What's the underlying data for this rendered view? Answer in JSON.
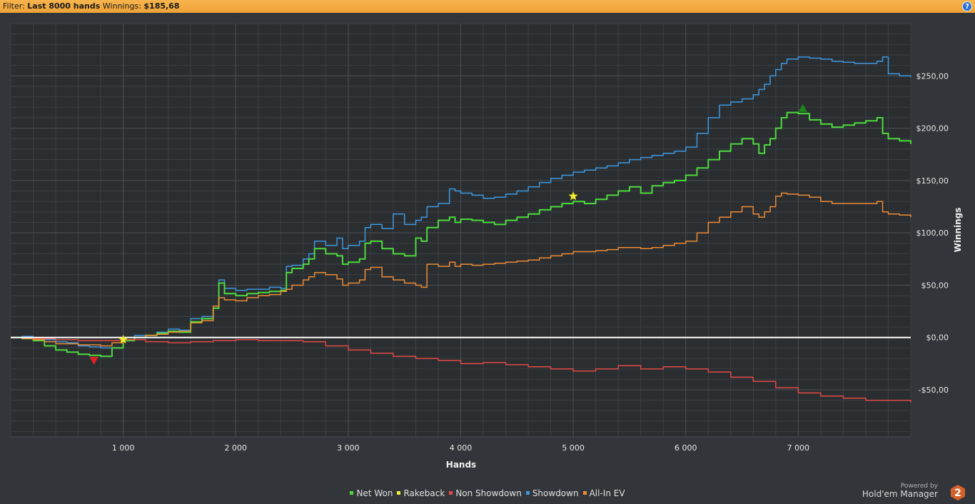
{
  "filter": {
    "prefix": "Filter:",
    "value": "Last 8000 hands",
    "winnings_label": "Winnings:",
    "winnings_value": "$185,68"
  },
  "help_icon": "question-icon",
  "colors": {
    "background": "#32363a",
    "plot_background": "#2b2e31",
    "grid": "#4a4e52",
    "zero_line": "#ffffff",
    "net_won": "#4ddb3c",
    "rakeback": "#f2ee3a",
    "non_showdown": "#e24a45",
    "showdown": "#3d98e0",
    "all_in_ev": "#ec8b35"
  },
  "chart_data": {
    "type": "line",
    "xlabel": "Hands",
    "ylabel": "Winnings",
    "xlim": [
      0,
      8000
    ],
    "ylim": [
      -95,
      300
    ],
    "xticks": [
      {
        "value": 1000,
        "label": "1 000"
      },
      {
        "value": 2000,
        "label": "2 000"
      },
      {
        "value": 3000,
        "label": "3 000"
      },
      {
        "value": 4000,
        "label": "4 000"
      },
      {
        "value": 5000,
        "label": "5 000"
      },
      {
        "value": 6000,
        "label": "6 000"
      },
      {
        "value": 7000,
        "label": "7 000"
      }
    ],
    "yticks": [
      {
        "value": -50,
        "label": "-$50,00"
      },
      {
        "value": 0,
        "label": "$0,00"
      },
      {
        "value": 50,
        "label": "$50,00"
      },
      {
        "value": 100,
        "label": "$100,00"
      },
      {
        "value": 150,
        "label": "$150,00"
      },
      {
        "value": 200,
        "label": "$200,00"
      },
      {
        "value": 250,
        "label": "$250,00"
      }
    ],
    "series": [
      {
        "name": "Showdown",
        "color": "#3d98e0",
        "x": [
          0,
          100,
          200,
          300,
          400,
          500,
          600,
          700,
          800,
          1000,
          1100,
          1300,
          1400,
          1500,
          1600,
          1700,
          1800,
          1850,
          1900,
          2000,
          2100,
          2200,
          2300,
          2400,
          2450,
          2500,
          2600,
          2650,
          2700,
          2800,
          2900,
          2950,
          3000,
          3100,
          3150,
          3200,
          3300,
          3400,
          3500,
          3600,
          3650,
          3700,
          3800,
          3900,
          3950,
          4000,
          4100,
          4200,
          4300,
          4400,
          4500,
          4600,
          4700,
          4800,
          4900,
          5000,
          5100,
          5200,
          5300,
          5400,
          5500,
          5600,
          5700,
          5800,
          5900,
          6000,
          6100,
          6200,
          6300,
          6400,
          6500,
          6600,
          6650,
          6700,
          6750,
          6800,
          6850,
          6900,
          7000,
          7100,
          7200,
          7300,
          7400,
          7500,
          7600,
          7700,
          7750,
          7800,
          7900,
          8000
        ],
        "y": [
          0,
          1,
          0,
          -2,
          -4,
          -5,
          -8,
          -9,
          -10,
          -3,
          2,
          5,
          8,
          7,
          18,
          20,
          30,
          55,
          47,
          45,
          46,
          46,
          48,
          47,
          68,
          69,
          75,
          80,
          92,
          88,
          95,
          85,
          88,
          92,
          105,
          108,
          104,
          118,
          108,
          112,
          115,
          125,
          128,
          142,
          140,
          138,
          136,
          133,
          134,
          137,
          140,
          144,
          148,
          152,
          155,
          158,
          160,
          162,
          164,
          167,
          170,
          172,
          174,
          176,
          178,
          182,
          195,
          210,
          222,
          225,
          228,
          232,
          237,
          242,
          250,
          256,
          262,
          266,
          268,
          267,
          266,
          264,
          263,
          262,
          262,
          264,
          268,
          252,
          250,
          249
        ]
      },
      {
        "name": "Net Won",
        "color": "#4ddb3c",
        "x": [
          0,
          100,
          200,
          300,
          400,
          500,
          600,
          700,
          800,
          900,
          1000,
          1100,
          1200,
          1300,
          1400,
          1500,
          1600,
          1700,
          1800,
          1850,
          1900,
          2000,
          2100,
          2200,
          2300,
          2400,
          2450,
          2500,
          2600,
          2650,
          2700,
          2800,
          2900,
          2950,
          3000,
          3100,
          3150,
          3200,
          3300,
          3400,
          3500,
          3600,
          3650,
          3700,
          3800,
          3900,
          3950,
          4000,
          4100,
          4200,
          4300,
          4400,
          4500,
          4600,
          4700,
          4800,
          4900,
          5000,
          5100,
          5200,
          5300,
          5400,
          5500,
          5600,
          5700,
          5800,
          5900,
          6000,
          6100,
          6200,
          6300,
          6400,
          6500,
          6600,
          6650,
          6700,
          6750,
          6800,
          6850,
          6900,
          7000,
          7100,
          7200,
          7300,
          7400,
          7500,
          7600,
          7700,
          7750,
          7800,
          7900,
          8000
        ],
        "y": [
          0,
          -1,
          -3,
          -8,
          -12,
          -14,
          -16,
          -17,
          -18,
          -10,
          -3,
          0,
          2,
          4,
          6,
          5,
          15,
          18,
          28,
          52,
          42,
          40,
          42,
          43,
          44,
          45,
          62,
          66,
          70,
          75,
          85,
          80,
          78,
          70,
          72,
          75,
          90,
          92,
          85,
          80,
          78,
          95,
          92,
          105,
          112,
          115,
          110,
          113,
          112,
          110,
          108,
          112,
          115,
          118,
          122,
          125,
          128,
          130,
          128,
          132,
          136,
          140,
          144,
          138,
          145,
          148,
          150,
          155,
          162,
          170,
          178,
          185,
          190,
          185,
          176,
          184,
          190,
          200,
          210,
          215,
          214,
          208,
          204,
          201,
          203,
          205,
          207,
          210,
          195,
          190,
          188,
          185
        ]
      },
      {
        "name": "All-In EV",
        "color": "#ec8b35",
        "x": [
          0,
          100,
          200,
          300,
          400,
          500,
          600,
          700,
          800,
          900,
          1000,
          1100,
          1200,
          1300,
          1400,
          1500,
          1600,
          1700,
          1800,
          1850,
          1900,
          2000,
          2100,
          2200,
          2300,
          2400,
          2450,
          2500,
          2600,
          2650,
          2700,
          2800,
          2900,
          2950,
          3000,
          3100,
          3150,
          3200,
          3300,
          3400,
          3500,
          3600,
          3650,
          3700,
          3800,
          3900,
          3950,
          4000,
          4100,
          4200,
          4300,
          4400,
          4500,
          4600,
          4700,
          4800,
          4900,
          5000,
          5100,
          5200,
          5300,
          5400,
          5500,
          5600,
          5700,
          5800,
          5900,
          6000,
          6100,
          6200,
          6300,
          6400,
          6500,
          6600,
          6650,
          6700,
          6750,
          6800,
          6850,
          6900,
          7000,
          7100,
          7200,
          7300,
          7400,
          7500,
          7600,
          7700,
          7750,
          7800,
          7900,
          8000
        ],
        "y": [
          0,
          -1,
          -2,
          -4,
          -6,
          -6,
          -7,
          -7,
          -8,
          -5,
          -2,
          0,
          2,
          3,
          5,
          6,
          14,
          16,
          30,
          38,
          36,
          35,
          38,
          40,
          41,
          44,
          46,
          50,
          55,
          58,
          62,
          60,
          56,
          50,
          52,
          55,
          65,
          67,
          58,
          55,
          52,
          50,
          48,
          70,
          68,
          72,
          68,
          70,
          69,
          70,
          71,
          72,
          73,
          74,
          76,
          78,
          80,
          82,
          82,
          83,
          84,
          86,
          86,
          85,
          86,
          88,
          90,
          92,
          100,
          110,
          115,
          120,
          125,
          118,
          115,
          120,
          125,
          135,
          138,
          137,
          136,
          134,
          130,
          128,
          128,
          128,
          128,
          130,
          120,
          118,
          117,
          115
        ]
      },
      {
        "name": "Non Showdown",
        "color": "#e24a45",
        "x": [
          0,
          200,
          400,
          600,
          800,
          1000,
          1200,
          1400,
          1600,
          1800,
          2000,
          2200,
          2400,
          2600,
          2800,
          3000,
          3200,
          3400,
          3600,
          3800,
          4000,
          4200,
          4400,
          4600,
          4800,
          5000,
          5200,
          5400,
          5600,
          5800,
          6000,
          6200,
          6400,
          6600,
          6800,
          7000,
          7200,
          7400,
          7600,
          7800,
          8000
        ],
        "y": [
          0,
          -1,
          -2,
          -3,
          -3,
          -2,
          -4,
          -5,
          -4,
          -3,
          -2,
          -3,
          -3,
          -4,
          -8,
          -12,
          -15,
          -18,
          -20,
          -22,
          -25,
          -24,
          -26,
          -28,
          -30,
          -32,
          -30,
          -27,
          -30,
          -28,
          -30,
          -33,
          -38,
          -42,
          -48,
          -53,
          -56,
          -58,
          -60,
          -60,
          -62
        ]
      }
    ],
    "markers": [
      {
        "name": "rakeback-star-1",
        "type": "star",
        "color": "#f2ee3a",
        "x": 1000,
        "y": -2
      },
      {
        "name": "rakeback-star-2",
        "type": "star",
        "color": "#f2ee3a",
        "x": 5000,
        "y": 135
      },
      {
        "name": "low-point-marker",
        "type": "triangle-down",
        "color": "#e02020",
        "x": 740,
        "y": -22
      },
      {
        "name": "high-point-marker",
        "type": "triangle-up",
        "color": "#1a8a1a",
        "x": 7040,
        "y": 219
      }
    ],
    "zero_line": true,
    "grid": true,
    "legend": "bottom-center",
    "legend_items": [
      {
        "label": "Net Won",
        "color": "#4ddb3c"
      },
      {
        "label": "Rakeback",
        "color": "#f2ee3a"
      },
      {
        "label": "Non Showdown",
        "color": "#e24a45"
      },
      {
        "label": "Showdown",
        "color": "#3d98e0"
      },
      {
        "label": "All-In EV",
        "color": "#ec8b35"
      }
    ]
  },
  "branding": {
    "powered_by": "Powered by",
    "product": "Hold'em Manager",
    "logo_text": "2"
  }
}
